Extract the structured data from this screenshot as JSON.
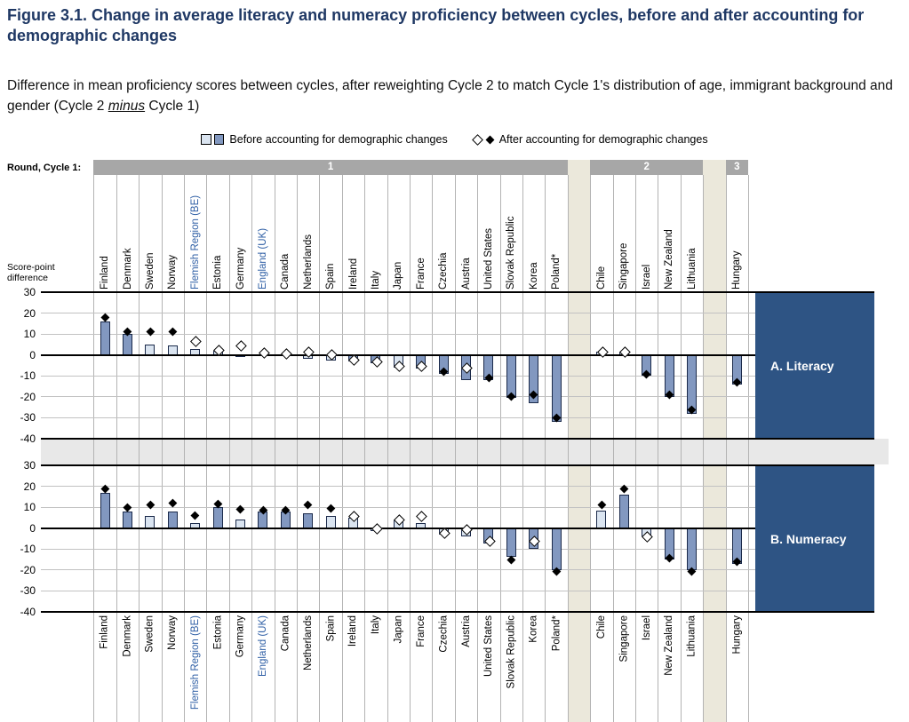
{
  "title": "Figure 3.1. Change in average literacy and numeracy proficiency between cycles, before and after accounting for demographic changes",
  "subtitle": {
    "part1": "Difference in mean proficiency scores between cycles, after reweighting Cycle 2 to match Cycle 1's distribution of age, immigrant background and gender (Cycle 2 ",
    "emphasis": "minus",
    "part2": " Cycle 1)"
  },
  "legend": {
    "before": "Before accounting for demographic changes",
    "after": "After accounting for demographic changes"
  },
  "round_header": {
    "label": "Round, Cycle 1:",
    "segments": [
      "1",
      "2",
      "3"
    ]
  },
  "y_axis": {
    "label_line1": "Score-point",
    "label_line2": "difference",
    "ticks": [
      30,
      20,
      10,
      0,
      -10,
      -20,
      -30,
      -40
    ]
  },
  "panels": [
    {
      "label": "A. Literacy"
    },
    {
      "label": "B. Numeracy"
    }
  ],
  "countries": [
    {
      "name": "Finland",
      "round": "1",
      "blue": false
    },
    {
      "name": "Denmark",
      "round": "1",
      "blue": false
    },
    {
      "name": "Sweden",
      "round": "1",
      "blue": false
    },
    {
      "name": "Norway",
      "round": "1",
      "blue": false
    },
    {
      "name": "Flemish Region (BE)",
      "round": "1",
      "blue": true
    },
    {
      "name": "Estonia",
      "round": "1",
      "blue": false
    },
    {
      "name": "Germany",
      "round": "1",
      "blue": false
    },
    {
      "name": "England (UK)",
      "round": "1",
      "blue": true
    },
    {
      "name": "Canada",
      "round": "1",
      "blue": false
    },
    {
      "name": "Netherlands",
      "round": "1",
      "blue": false
    },
    {
      "name": "Spain",
      "round": "1",
      "blue": false
    },
    {
      "name": "Ireland",
      "round": "1",
      "blue": false
    },
    {
      "name": "Italy",
      "round": "1",
      "blue": false
    },
    {
      "name": "Japan",
      "round": "1",
      "blue": false
    },
    {
      "name": "France",
      "round": "1",
      "blue": false
    },
    {
      "name": "Czechia",
      "round": "1",
      "blue": false
    },
    {
      "name": "Austria",
      "round": "1",
      "blue": false
    },
    {
      "name": "United States",
      "round": "1",
      "blue": false
    },
    {
      "name": "Slovak Republic",
      "round": "1",
      "blue": false
    },
    {
      "name": "Korea",
      "round": "1",
      "blue": false
    },
    {
      "name": "Poland*",
      "round": "1",
      "blue": false
    },
    {
      "name": "Chile",
      "round": "2",
      "blue": false
    },
    {
      "name": "Singapore",
      "round": "2",
      "blue": false
    },
    {
      "name": "Israel",
      "round": "2",
      "blue": false
    },
    {
      "name": "New Zealand",
      "round": "2",
      "blue": false
    },
    {
      "name": "Lithuania",
      "round": "2",
      "blue": false
    },
    {
      "name": "Hungary",
      "round": "3",
      "blue": false
    }
  ],
  "chart_data": [
    {
      "type": "bar",
      "title": "A. Literacy",
      "ylabel": "Score-point difference",
      "ylim": [
        -40,
        30
      ],
      "grid": true,
      "legend_position": "top",
      "categories": [
        "Finland",
        "Denmark",
        "Sweden",
        "Norway",
        "Flemish Region (BE)",
        "Estonia",
        "Germany",
        "England (UK)",
        "Canada",
        "Netherlands",
        "Spain",
        "Ireland",
        "Italy",
        "Japan",
        "France",
        "Czechia",
        "Austria",
        "United States",
        "Slovak Republic",
        "Korea",
        "Poland*",
        "Chile",
        "Singapore",
        "Israel",
        "New Zealand",
        "Lithuania",
        "Hungary"
      ],
      "series": [
        {
          "name": "Before accounting for demographic changes",
          "style": "bar",
          "values": [
            16,
            10,
            5,
            4.5,
            3,
            2,
            -0.5,
            0.5,
            0.5,
            -2,
            -2.5,
            -3,
            -4,
            -6,
            -6.5,
            -9,
            -12,
            -12,
            -20.5,
            -23,
            -32,
            1.5,
            1.5,
            -10,
            -20,
            -28,
            -14
          ],
          "bar_shade": [
            "dark",
            "dark",
            "light",
            "light",
            "light",
            "light",
            "light",
            "light",
            "light",
            "light",
            "light",
            "dark",
            "dark",
            "light",
            "dark",
            "dark",
            "dark",
            "dark",
            "dark",
            "dark",
            "dark",
            "light",
            "light",
            "dark",
            "dark",
            "dark",
            "dark"
          ]
        },
        {
          "name": "After accounting for demographic changes",
          "style": "diamond-marker",
          "values": [
            18,
            11,
            11,
            11,
            7,
            2.5,
            5,
            1.5,
            1,
            2,
            0.5,
            -2,
            -3,
            -5,
            -5,
            -8,
            -6,
            -11,
            -20,
            -19,
            -30,
            2,
            2,
            -9,
            -19,
            -26,
            -13
          ],
          "marker_fill": [
            "filled",
            "filled",
            "filled",
            "filled",
            "open",
            "open",
            "open",
            "open",
            "open",
            "open",
            "open",
            "open",
            "open",
            "open",
            "open",
            "filled",
            "open",
            "filled",
            "filled",
            "filled",
            "filled",
            "open",
            "open",
            "filled",
            "filled",
            "filled",
            "filled"
          ]
        }
      ]
    },
    {
      "type": "bar",
      "title": "B. Numeracy",
      "ylabel": "Score-point difference",
      "ylim": [
        -40,
        30
      ],
      "grid": true,
      "legend_position": "top",
      "categories": [
        "Finland",
        "Denmark",
        "Sweden",
        "Norway",
        "Flemish Region (BE)",
        "Estonia",
        "Germany",
        "England (UK)",
        "Canada",
        "Netherlands",
        "Spain",
        "Ireland",
        "Italy",
        "Japan",
        "France",
        "Czechia",
        "Austria",
        "United States",
        "Slovak Republic",
        "Korea",
        "Poland*",
        "Chile",
        "Singapore",
        "Israel",
        "New Zealand",
        "Lithuania",
        "Hungary"
      ],
      "series": [
        {
          "name": "Before accounting for demographic changes",
          "style": "bar",
          "values": [
            17,
            8,
            6,
            8,
            2.5,
            10,
            4,
            8,
            8,
            7,
            6,
            5,
            -1.5,
            4,
            2.5,
            -3,
            -4,
            -7.5,
            -13.5,
            -10,
            -20,
            8.5,
            16,
            -4,
            -15,
            -20,
            -17
          ],
          "bar_shade": [
            "dark",
            "dark",
            "light",
            "dark",
            "light",
            "dark",
            "light",
            "dark",
            "dark",
            "dark",
            "light",
            "light",
            "light",
            "light",
            "light",
            "light",
            "light",
            "dark",
            "dark",
            "dark",
            "dark",
            "light",
            "dark",
            "light",
            "dark",
            "dark",
            "dark"
          ]
        },
        {
          "name": "After accounting for demographic changes",
          "style": "diamond-marker",
          "values": [
            19,
            10,
            11,
            12,
            6,
            11.5,
            9,
            8.5,
            8.5,
            11,
            9.5,
            6,
            0,
            4.5,
            6,
            -2,
            -0.5,
            -6,
            -15,
            -6,
            -20.5,
            11,
            19,
            -3.5,
            -14.5,
            -20.5,
            -16
          ],
          "marker_fill": [
            "filled",
            "filled",
            "filled",
            "filled",
            "filled",
            "filled",
            "filled",
            "filled",
            "filled",
            "filled",
            "filled",
            "open",
            "open",
            "open",
            "open",
            "open",
            "open",
            "open",
            "filled",
            "open",
            "filled",
            "filled",
            "filled",
            "open",
            "filled",
            "filled",
            "filled"
          ]
        }
      ]
    }
  ],
  "colors": {
    "title": "#1F3864",
    "bar_dark": "#8298C0",
    "bar_light": "#DAE4F0",
    "bar_border": "#1B2A4A",
    "panel_box": "#2E5484",
    "beige_stripe": "#EBE8DB",
    "between_band": "#E8E8E8",
    "round_bar": "#A7A7A7",
    "blue_label": "#2F5FA5"
  }
}
